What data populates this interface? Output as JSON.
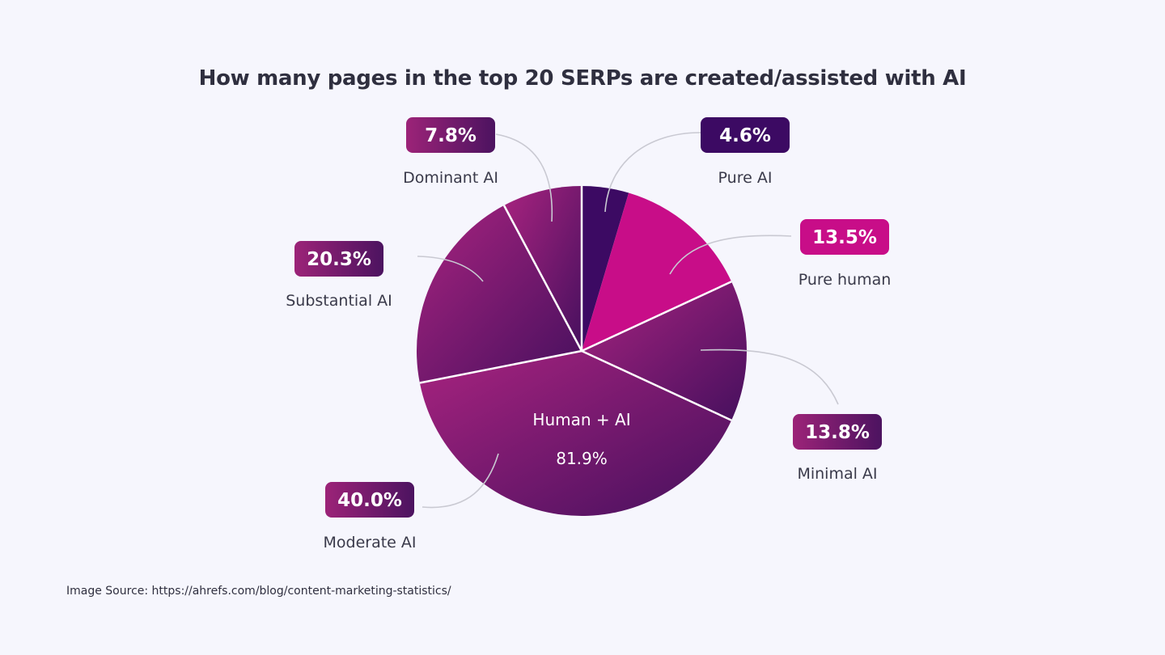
{
  "chart_data": {
    "type": "pie",
    "title": "How many pages in the top 20 SERPs are created/assisted with AI",
    "slices": [
      {
        "label": "Pure AI",
        "value": 4.6,
        "display": "4.6%"
      },
      {
        "label": "Pure human",
        "value": 13.5,
        "display": "13.5%"
      },
      {
        "label": "Minimal AI",
        "value": 13.8,
        "display": "13.8%"
      },
      {
        "label": "Moderate AI",
        "value": 40.0,
        "display": "40.0%"
      },
      {
        "label": "Substantial AI",
        "value": 20.3,
        "display": "20.3%"
      },
      {
        "label": "Dominant AI",
        "value": 7.8,
        "display": "7.8%"
      }
    ],
    "group": {
      "label": "Human + AI",
      "value": 81.9,
      "display": "81.9%"
    }
  },
  "colors": {
    "background": "#f6f6fd",
    "pure_ai": "#3c0a63",
    "pure_human": "#c80d88",
    "mixed_light": "#9b2478",
    "mixed_dark": "#4a1260",
    "divider": "#ffffff",
    "leader": "#c9c9d2"
  },
  "source": {
    "text": "Image Source: https://ahrefs.com/blog/content-marketing-statistics/"
  }
}
